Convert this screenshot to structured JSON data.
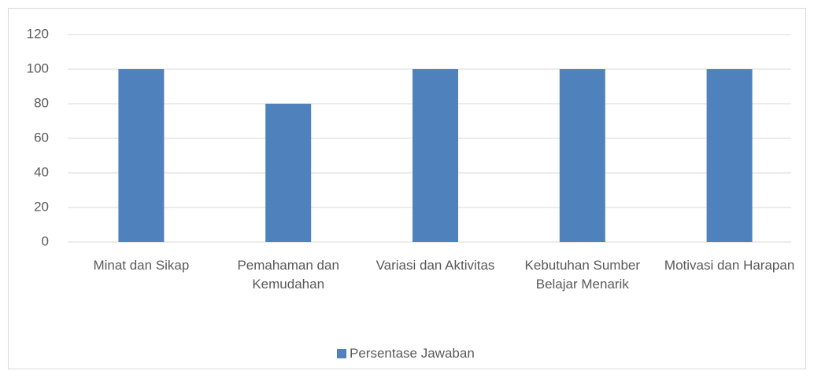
{
  "chart_data": {
    "type": "bar",
    "categories": [
      "Minat dan Sikap",
      "Pemahaman dan Kemudahan",
      "Variasi dan Aktivitas",
      "Kebutuhan Sumber Belajar Menarik",
      "Motivasi dan Harapan"
    ],
    "series": [
      {
        "name": "Persentase Jawaban",
        "color": "#4f81bd",
        "values": [
          100,
          80,
          100,
          100,
          100
        ]
      }
    ],
    "ylim": [
      0,
      120
    ],
    "yticks": [
      0,
      20,
      40,
      60,
      80,
      100,
      120
    ],
    "grid": true,
    "legend": "bottom"
  }
}
